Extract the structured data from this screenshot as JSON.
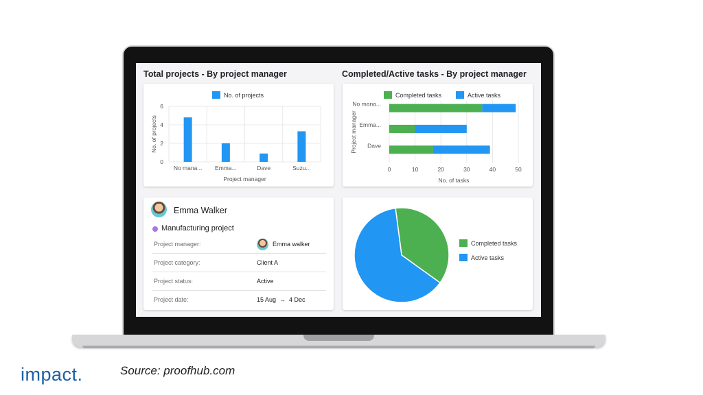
{
  "left_chart": {
    "title": "Total projects - By project manager",
    "chart_data": {
      "type": "bar",
      "categories": [
        "No mana...",
        "Emma...",
        "Dave",
        "Suzu..."
      ],
      "series": [
        {
          "name": "No. of projects",
          "values": [
            4.8,
            2,
            0.9,
            3.3
          ]
        }
      ],
      "xlabel": "Project manager",
      "ylabel": "No. of projects",
      "ylim": [
        0,
        6
      ],
      "yticks": [
        "0",
        "2",
        "4",
        "6"
      ],
      "grid": true,
      "legend": "top",
      "color": "#2196f3"
    }
  },
  "right_chart": {
    "title": "Completed/Active tasks - By project manager",
    "chart_data": {
      "type": "bar",
      "orientation": "horizontal",
      "stacked": true,
      "categories": [
        "No mana...",
        "Emma...",
        "Dave"
      ],
      "series": [
        {
          "name": "Completed tasks",
          "values": [
            36,
            10,
            17
          ],
          "color": "#4caf50"
        },
        {
          "name": "Active tasks",
          "values": [
            13,
            20,
            22
          ],
          "color": "#2196f3"
        }
      ],
      "xlabel": "No. of tasks",
      "ylabel": "Project manager",
      "xlim": [
        0,
        50
      ],
      "xticks": [
        "0",
        "10",
        "20",
        "30",
        "40",
        "50"
      ],
      "grid": true,
      "legend": "top"
    }
  },
  "details": {
    "name": "Emma Walker",
    "project": "Manufacturing project",
    "rows": [
      {
        "label": "Project manager:",
        "value": "Emma walker"
      },
      {
        "label": "Project category:",
        "value": "Client A"
      },
      {
        "label": "Project status:",
        "value": "Active"
      },
      {
        "label": "Project date:",
        "start": "15 Aug",
        "arrow": "→",
        "end": "4 Dec"
      }
    ]
  },
  "pie_chart": {
    "chart_data": {
      "type": "pie",
      "slices": [
        {
          "name": "Completed tasks",
          "value": 37,
          "color": "#4caf50"
        },
        {
          "name": "Active tasks",
          "value": 63,
          "color": "#2196f3"
        }
      ],
      "legend": "right"
    }
  },
  "footer": {
    "logo": "impact.",
    "source": "Source: proofhub.com"
  }
}
